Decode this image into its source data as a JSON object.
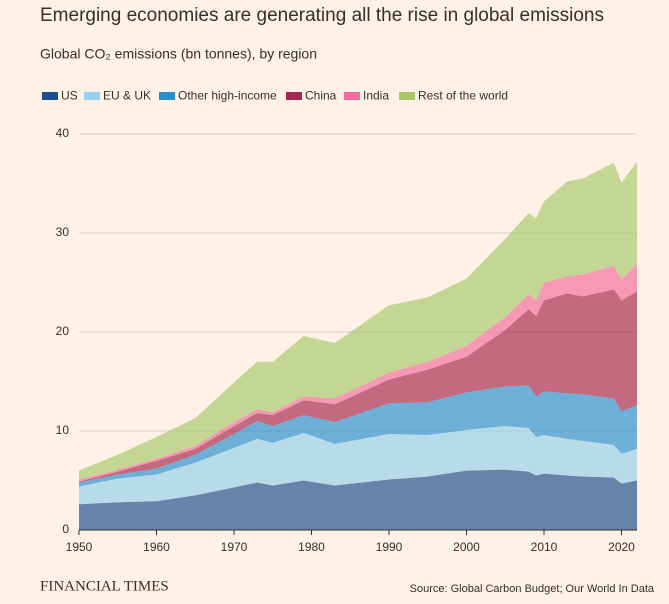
{
  "chart_data": {
    "type": "stacked-area",
    "title": "Emerging economies are generating all the rise in global emissions",
    "subtitle": "Global CO₂ emissions (bn tonnes), by region",
    "x": [
      1950,
      1955,
      1960,
      1965,
      1970,
      1973,
      1975,
      1979,
      1983,
      1990,
      1995,
      2000,
      2005,
      2008,
      2009,
      2010,
      2013,
      2015,
      2019,
      2020,
      2022
    ],
    "series": [
      {
        "name": "US",
        "color": "#1f4e8c",
        "values": [
          2.6,
          2.8,
          2.9,
          3.5,
          4.3,
          4.8,
          4.5,
          5.0,
          4.5,
          5.1,
          5.4,
          6.0,
          6.1,
          5.9,
          5.5,
          5.7,
          5.5,
          5.4,
          5.3,
          4.7,
          5.0
        ]
      },
      {
        "name": "EU & UK",
        "color": "#96d0ec",
        "values": [
          1.8,
          2.4,
          2.7,
          3.3,
          4.0,
          4.4,
          4.3,
          4.8,
          4.2,
          4.6,
          4.2,
          4.1,
          4.4,
          4.4,
          3.9,
          3.9,
          3.7,
          3.6,
          3.3,
          3.0,
          3.2
        ]
      },
      {
        "name": "Other high-income",
        "color": "#2a8fd1",
        "values": [
          0.4,
          0.4,
          0.6,
          0.8,
          1.4,
          1.8,
          1.7,
          1.8,
          2.2,
          3.1,
          3.3,
          3.8,
          4.0,
          4.3,
          4.1,
          4.4,
          4.6,
          4.7,
          4.7,
          4.3,
          4.4
        ]
      },
      {
        "name": "China",
        "color": "#a8294f",
        "values": [
          0.1,
          0.3,
          0.8,
          0.6,
          0.8,
          0.8,
          1.1,
          1.5,
          1.8,
          2.4,
          3.3,
          3.6,
          5.7,
          7.7,
          8.1,
          9.2,
          10.1,
          9.9,
          11.0,
          11.2,
          11.5
        ]
      },
      {
        "name": "India",
        "color": "#f36f9d",
        "values": [
          0.2,
          0.2,
          0.2,
          0.3,
          0.4,
          0.4,
          0.3,
          0.4,
          0.6,
          0.7,
          0.8,
          1.1,
          1.3,
          1.5,
          1.6,
          1.8,
          1.7,
          2.2,
          2.4,
          2.1,
          2.8
        ]
      },
      {
        "name": "Rest of the world",
        "color": "#a8c96b",
        "values": [
          0.9,
          1.5,
          2.2,
          2.8,
          4.0,
          4.8,
          5.1,
          6.1,
          5.6,
          6.8,
          6.5,
          6.8,
          7.9,
          8.2,
          8.3,
          8.2,
          9.6,
          9.7,
          10.4,
          9.8,
          10.3
        ]
      }
    ],
    "xlim": [
      1950,
      2022
    ],
    "xticks": [
      1950,
      1960,
      1970,
      1980,
      1990,
      2000,
      2010,
      2020
    ],
    "ylim": [
      0,
      40
    ],
    "yticks": [
      0,
      10,
      20,
      30,
      40
    ],
    "grid": true,
    "brand": "FINANCIAL TIMES",
    "source": "Source: Global Carbon Budget; Our World In Data"
  }
}
